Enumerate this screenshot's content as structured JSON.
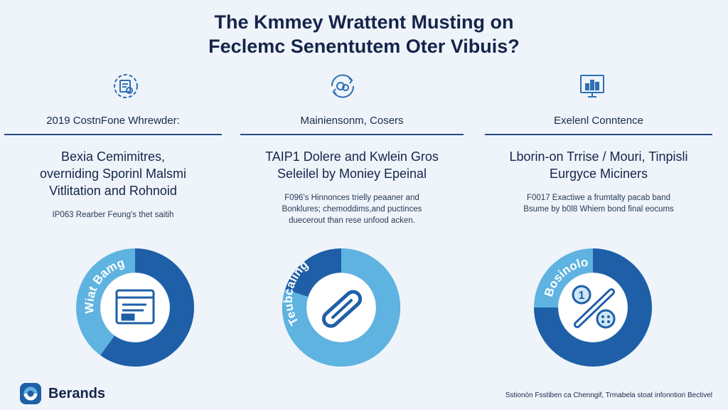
{
  "title": {
    "line1": "The Kmmey Wrattent Musting on",
    "line2": "Feclemc Senentutem Oter Vibuis?"
  },
  "columns": [
    {
      "icon": "document-gear-icon",
      "heading": "2019 CostnFone Whrewder:",
      "main_lines": [
        "Bexia Cemimitres,",
        "overniding Sporinl Malsmi",
        "Vitlitation and Rohnoid"
      ],
      "desc_lines": [
        "IP063 Rearber Feung's thet saitih"
      ],
      "donut": {
        "label": "Wiat Bamg",
        "center_icon": "document-icon",
        "fraction": 0.6
      }
    },
    {
      "icon": "coins-cycle-icon",
      "heading": "Mainiensonm, Cosers",
      "main_lines": [
        "TAIP1 Dolere and Kwlein Gros",
        "Seleilel by Moniey Epeinal"
      ],
      "desc_lines": [
        "F096's Hinnonces trielly peaaner and",
        "Bonklures; chemoddims,and puctinces",
        "duecerout than rese unfood acken."
      ],
      "donut": {
        "label": "Teubcaling",
        "center_icon": "link-icon",
        "fraction": 0.8
      }
    },
    {
      "icon": "monitor-chart-icon",
      "heading": "Exelenl Conntence",
      "main_lines": [
        "Lborin-on Trrise / Mouri, Tinpisli",
        "Eurgyce Miciners"
      ],
      "desc_lines": [
        "F0017 Exactiwe a frumtalty pacab band",
        "Bsume by b0l8 Whiem bond final eocums"
      ],
      "donut": {
        "label": "Bosinolo",
        "center_icon": "percent-slash-icon",
        "fraction": 0.75
      }
    }
  ],
  "brand": {
    "name": "Berands",
    "logo_icon": "brand-logo-icon"
  },
  "footer": "Sstionón Fsstiben ca Chenngif, Trmabela stoat infonntiori Bectivel",
  "colors": {
    "dark": "#1f5fa8",
    "mid": "#3a86c8",
    "light": "#5fb3e0",
    "navy": "#16244a",
    "bg": "#eef4fa"
  }
}
